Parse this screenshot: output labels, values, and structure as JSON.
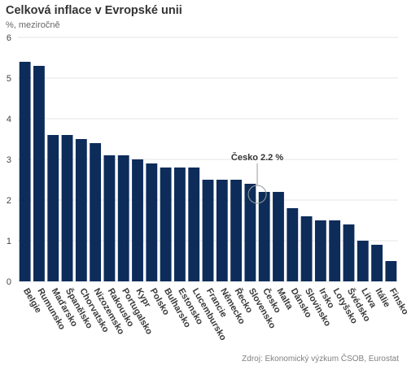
{
  "chart_data": {
    "type": "bar",
    "title": "Celková inflace v Evropské unii",
    "subtitle": "%, meziročně",
    "categories": [
      "Belgie",
      "Rumunsko",
      "Maďarsko",
      "Španělsko",
      "Chorvatsko",
      "Nizozemsko",
      "Rakousko",
      "Portugalsko",
      "Kypr",
      "Polsko",
      "Bulharsko",
      "Estonsko",
      "Lucembursko",
      "Francie",
      "Německo",
      "Řecko",
      "Slovensko",
      "Česko",
      "Malta",
      "Dánsko",
      "Slovinsko",
      "Irsko",
      "Lotyšsko",
      "Švédsko",
      "Litva",
      "Itálie",
      "Finsko"
    ],
    "values": [
      5.4,
      5.3,
      3.6,
      3.6,
      3.5,
      3.4,
      3.1,
      3.1,
      3.0,
      2.9,
      2.8,
      2.8,
      2.8,
      2.5,
      2.5,
      2.5,
      2.4,
      2.2,
      2.2,
      1.8,
      1.6,
      1.5,
      1.5,
      1.4,
      1.0,
      0.9,
      0.5
    ],
    "ylim": [
      0,
      6
    ],
    "yticks": [
      "0",
      "1",
      "2",
      "3",
      "4",
      "5",
      "6"
    ],
    "grid": true,
    "bar_color": "#0d2c5a",
    "gridline_color": "#e6e6e6",
    "annotation": {
      "label": "Česko 2.2 %",
      "target": "Česko",
      "value": 2.2
    },
    "source": "Zdroj: Ekonomický výzkum ČSOB, Eurostat"
  }
}
